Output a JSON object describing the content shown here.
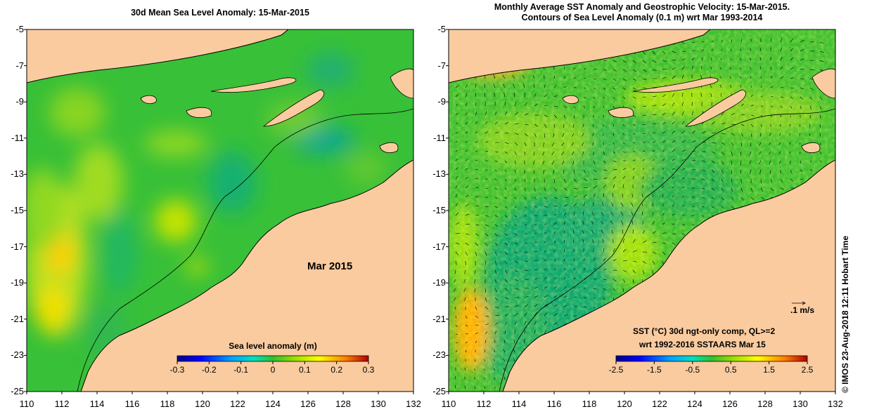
{
  "left_panel": {
    "title": "30d Mean Sea Level Anomaly: 15-Mar-2015",
    "month_label": "Mar 2015",
    "colorbar": {
      "label": "Sea level anomaly (m)",
      "ticks": [
        "-0.3",
        "-0.2",
        "-0.1",
        "0",
        "0.1",
        "0.2",
        "0.3"
      ],
      "range": [
        -0.3,
        0.3
      ]
    }
  },
  "right_panel": {
    "title_line1": "Monthly Average SST Anomaly  and Geostrophic Velocity: 15-Mar-2015.",
    "title_line2": "Contours of Sea Level Anomaly (0.1 m) wrt Mar 1993-2014",
    "velocity_scale_label": ".1 m/s",
    "colorbar": {
      "label_line1": "SST (°C) 30d ngt-only comp, QL>=2",
      "label_line2": "wrt 1992-2016 SSTAARS Mar 15",
      "ticks": [
        "-2.5",
        "-1.5",
        "-0.5",
        "0.5",
        "1.5",
        "2.5"
      ],
      "range": [
        -2.5,
        2.5
      ]
    }
  },
  "axes": {
    "lat_ticks": [
      "-5",
      "-7",
      "-9",
      "-11",
      "-13",
      "-15",
      "-17",
      "-19",
      "-21",
      "-23",
      "-25"
    ],
    "lon_ticks": [
      "110",
      "112",
      "114",
      "116",
      "118",
      "120",
      "122",
      "124",
      "126",
      "128",
      "130",
      "132"
    ],
    "lat_range": [
      -25,
      -5
    ],
    "lon_range": [
      110,
      132
    ]
  },
  "credit": "© IMOS 23-Aug-2018 12:11 Hobart Time",
  "colors": {
    "land": "#f9cb9f",
    "ocean_base": "#2bbf2b",
    "jet": [
      "#00008f",
      "#0000ff",
      "#0080ff",
      "#00ffff",
      "#80ff80",
      "#ffff00",
      "#ff8000",
      "#ff0000",
      "#800000"
    ]
  }
}
